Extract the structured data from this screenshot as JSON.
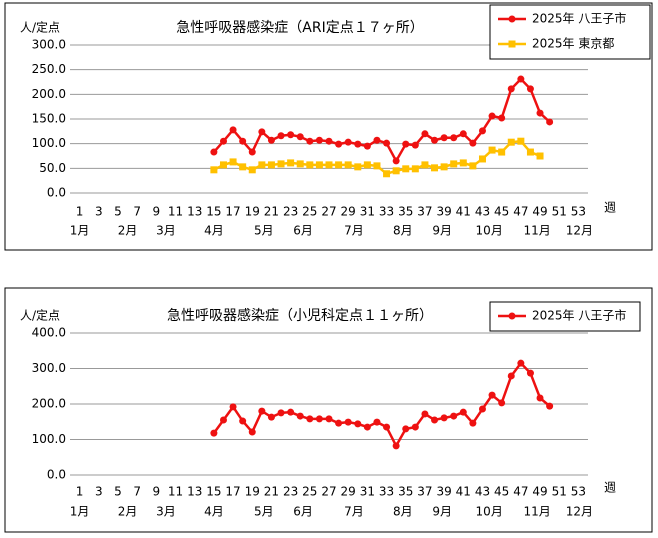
{
  "chart_data": [
    {
      "type": "line",
      "title": "急性呼吸器感染症（ARI定点１７ヶ所）",
      "y_label": "人/定点",
      "x_label": "週",
      "x": [
        15,
        16,
        17,
        18,
        19,
        20,
        21,
        22,
        23,
        24,
        25,
        26,
        27,
        28,
        29,
        30,
        31,
        32,
        33,
        34,
        35,
        36,
        37,
        38,
        39,
        40,
        41,
        42,
        43,
        44,
        45,
        46,
        47,
        48,
        49,
        50
      ],
      "xlim": [
        0,
        54
      ],
      "xticks": [
        1,
        3,
        5,
        7,
        9,
        11,
        13,
        15,
        17,
        19,
        21,
        23,
        25,
        27,
        29,
        31,
        33,
        35,
        37,
        39,
        41,
        43,
        45,
        47,
        49,
        51,
        53
      ],
      "months": [
        "1月",
        "2月",
        "3月",
        "4月",
        "5月",
        "6月",
        "7月",
        "8月",
        "9月",
        "10月",
        "11月",
        "12月"
      ],
      "ylim": [
        0,
        300
      ],
      "yticks": [
        {
          "value": 0,
          "label": "0.0"
        },
        {
          "value": 50,
          "label": "50.0"
        },
        {
          "value": 100,
          "label": "100.0"
        },
        {
          "value": 150,
          "label": "150.0"
        },
        {
          "value": 200,
          "label": "200.0"
        },
        {
          "value": 250,
          "label": "250.0"
        },
        {
          "value": 300,
          "label": "300.0"
        }
      ],
      "grid": true,
      "legend": "top-right",
      "series": [
        {
          "name": "2025年 八王子市",
          "color": "#ee1111",
          "marker": "circle",
          "values": [
            83,
            105,
            128,
            105,
            83,
            124,
            107,
            116,
            118,
            114,
            105,
            107,
            105,
            99,
            103,
            99,
            95,
            107,
            101,
            65,
            99,
            97,
            120,
            107,
            112,
            112,
            120,
            101,
            126,
            156,
            152,
            211,
            231,
            211,
            162,
            144
          ]
        },
        {
          "name": "2025年 東京都",
          "color": "#ffc000",
          "marker": "square",
          "values": [
            47,
            57,
            63,
            53,
            47,
            57,
            57,
            59,
            61,
            59,
            57,
            57,
            57,
            57,
            57,
            53,
            57,
            55,
            39,
            45,
            49,
            49,
            57,
            51,
            53,
            59,
            61,
            55,
            69,
            87,
            83,
            103,
            105,
            83,
            75,
            null
          ]
        }
      ]
    },
    {
      "type": "line",
      "title": "急性呼吸器感染症（小児科定点１１ヶ所）",
      "y_label": "人/定点",
      "x_label": "週",
      "x": [
        15,
        16,
        17,
        18,
        19,
        20,
        21,
        22,
        23,
        24,
        25,
        26,
        27,
        28,
        29,
        30,
        31,
        32,
        33,
        34,
        35,
        36,
        37,
        38,
        39,
        40,
        41,
        42,
        43,
        44,
        45,
        46,
        47,
        48,
        49,
        50
      ],
      "xlim": [
        0,
        54
      ],
      "xticks": [
        1,
        3,
        5,
        7,
        9,
        11,
        13,
        15,
        17,
        19,
        21,
        23,
        25,
        27,
        29,
        31,
        33,
        35,
        37,
        39,
        41,
        43,
        45,
        47,
        49,
        51,
        53
      ],
      "months": [
        "1月",
        "2月",
        "3月",
        "4月",
        "5月",
        "6月",
        "7月",
        "8月",
        "9月",
        "10月",
        "11月",
        "12月"
      ],
      "ylim": [
        0,
        400
      ],
      "yticks": [
        {
          "value": 0,
          "label": "0.0"
        },
        {
          "value": 100,
          "label": "100.0"
        },
        {
          "value": 200,
          "label": "200.0"
        },
        {
          "value": 300,
          "label": "300.0"
        },
        {
          "value": 400,
          "label": "400.0"
        }
      ],
      "grid": true,
      "legend": "top-right",
      "series": [
        {
          "name": "2025年 八王子市",
          "color": "#ee1111",
          "marker": "circle",
          "values": [
            118,
            155,
            192,
            152,
            121,
            180,
            163,
            175,
            177,
            166,
            158,
            158,
            158,
            146,
            149,
            144,
            135,
            149,
            135,
            82,
            130,
            135,
            172,
            155,
            161,
            166,
            177,
            146,
            186,
            225,
            203,
            279,
            315,
            287,
            217,
            194
          ]
        }
      ]
    }
  ]
}
